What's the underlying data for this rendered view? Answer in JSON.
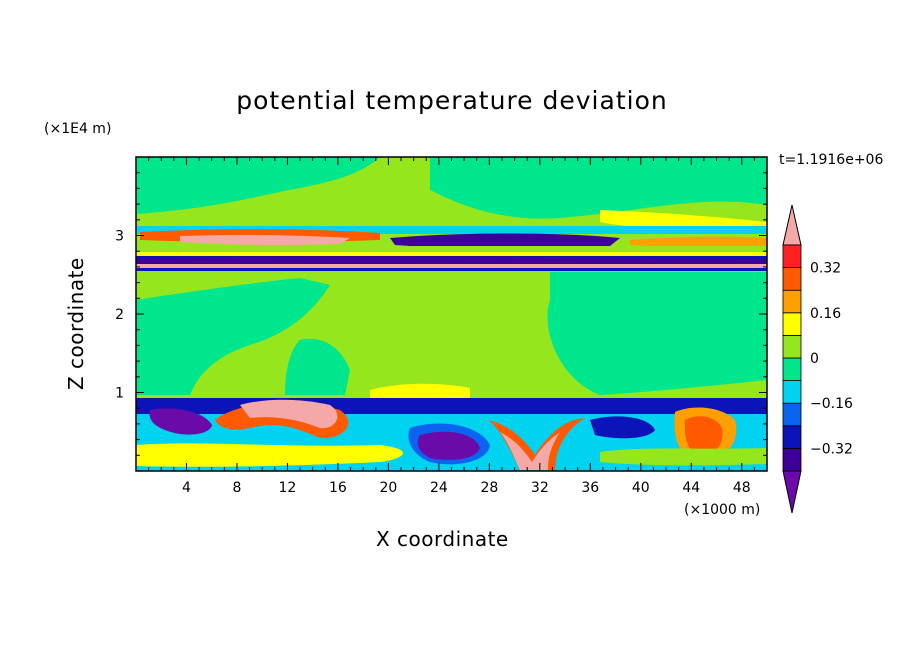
{
  "chart_data": {
    "type": "heatmap",
    "title": "potential temperature deviation",
    "xlabel": "X coordinate",
    "ylabel": "Z coordinate",
    "x_unit": "(×1000 m)",
    "y_unit": "(×1E4 m)",
    "time_label": "t=1.1916e+06",
    "xlim": [
      0,
      50
    ],
    "ylim": [
      0,
      4
    ],
    "x_ticks": [
      "4",
      "8",
      "12",
      "16",
      "20",
      "24",
      "28",
      "32",
      "36",
      "40",
      "44",
      "48"
    ],
    "y_ticks": [
      "1",
      "2",
      "3"
    ],
    "colorbar": {
      "min": -0.48,
      "max": 0.48,
      "step": 0.08,
      "labels": [
        "0.32",
        "0.16",
        "0",
        "−0.16",
        "−0.32"
      ],
      "label_values": [
        0.32,
        0.16,
        0,
        -0.16,
        -0.32
      ],
      "colors": [
        "#6a0aa8",
        "#3c0098",
        "#0a14b8",
        "#0a64f0",
        "#00d2f0",
        "#00e68c",
        "#96e61e",
        "#ffff00",
        "#ffa000",
        "#ff5a00",
        "#ff2020",
        "#f4a8a8"
      ]
    }
  }
}
